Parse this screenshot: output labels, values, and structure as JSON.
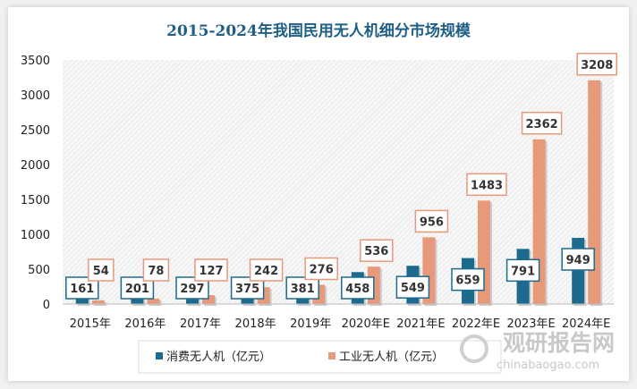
{
  "chart_data": {
    "type": "bar",
    "title": "2015-2024年我国民用无人机细分市场规模",
    "categories": [
      "2015年",
      "2016年",
      "2017年",
      "2018年",
      "2019年",
      "2020年E",
      "2021年E",
      "2022年E",
      "2023年E",
      "2024年E"
    ],
    "series": [
      {
        "name": "消费无人机（亿元）",
        "color": "#1c6b8f",
        "values": [
          161,
          201,
          297,
          375,
          381,
          458,
          549,
          659,
          791,
          949
        ]
      },
      {
        "name": "工业无人机（亿元）",
        "color": "#e8997a",
        "values": [
          54,
          78,
          127,
          242,
          276,
          536,
          956,
          1483,
          2362,
          3208
        ]
      }
    ],
    "ylim": [
      0,
      3500
    ],
    "yticks": [
      0,
      500,
      1000,
      1500,
      2000,
      2500,
      3000,
      3500
    ],
    "xlabel": "",
    "ylabel": "",
    "grid": false,
    "legend": "bottom",
    "data_labels": true
  },
  "watermark": {
    "brand": "观研报告网",
    "url": "chinabaogao.com"
  }
}
